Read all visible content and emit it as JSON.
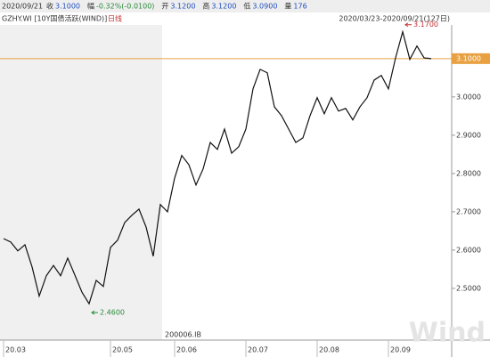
{
  "header": {
    "date": "2020/09/21",
    "fields": [
      {
        "label": "收",
        "value": "3.1000"
      },
      {
        "label": "幅",
        "value": "-0.32%(-0.0100)"
      },
      {
        "label": "开",
        "value": "3.1200"
      },
      {
        "label": "高",
        "value": "3.1200"
      },
      {
        "label": "低",
        "value": "3.0900"
      },
      {
        "label": "量",
        "value": "176"
      }
    ],
    "instrument": "GZHY.WI [10Y国债活跃(WIND)]",
    "period": "日线",
    "range": "2020/03/23-2020/09/21(127日)"
  },
  "chart_data": {
    "type": "line",
    "color": "#111111",
    "categories": [
      "20.03",
      null,
      null,
      null,
      null,
      null,
      null,
      null,
      null,
      null,
      null,
      null,
      null,
      null,
      null,
      "20.05",
      null,
      null,
      null,
      null,
      null,
      null,
      null,
      null,
      "20.06",
      null,
      null,
      null,
      null,
      null,
      null,
      null,
      null,
      null,
      "20.07",
      null,
      null,
      null,
      null,
      null,
      null,
      null,
      null,
      null,
      "20.08",
      null,
      null,
      null,
      null,
      null,
      null,
      null,
      null,
      null,
      "20.09",
      null,
      null,
      null,
      null,
      null,
      null
    ],
    "values": [
      2.63,
      2.621,
      2.598,
      2.614,
      2.556,
      2.48,
      2.533,
      2.56,
      2.533,
      2.579,
      2.535,
      2.49,
      2.46,
      2.521,
      2.505,
      2.607,
      2.626,
      2.672,
      2.691,
      2.707,
      2.66,
      2.584,
      2.719,
      2.7,
      2.788,
      2.847,
      2.823,
      2.77,
      2.812,
      2.881,
      2.863,
      2.916,
      2.853,
      2.87,
      2.916,
      3.021,
      3.072,
      3.063,
      2.974,
      2.951,
      2.916,
      2.881,
      2.893,
      2.951,
      2.998,
      2.956,
      2.998,
      2.963,
      2.97,
      2.94,
      2.974,
      2.998,
      3.044,
      3.056,
      3.021,
      3.102,
      3.17,
      3.098,
      3.133,
      3.102,
      3.1
    ],
    "ylim": [
      2.365,
      3.188
    ],
    "yticks": [
      {
        "value": 2.5,
        "label": "2.5000"
      },
      {
        "value": 2.6,
        "label": "2.6000"
      },
      {
        "value": 2.7,
        "label": "2.7000"
      },
      {
        "value": 2.8,
        "label": "2.8000"
      },
      {
        "value": 2.9,
        "label": "2.9000"
      },
      {
        "value": 3.0,
        "label": "3.0000"
      },
      {
        "value": 3.1,
        "label": "3.1000"
      }
    ],
    "grid": false,
    "reference_line": {
      "value": 3.1,
      "color": "#e8a040"
    },
    "annotations": [
      {
        "label": "3.1700",
        "value": 3.17,
        "color": "#c03030"
      },
      {
        "label": "2.4600",
        "value": 2.46,
        "color": "#2a8a3a"
      }
    ],
    "contract_label": "200006.IB",
    "watermark": "Wind"
  }
}
